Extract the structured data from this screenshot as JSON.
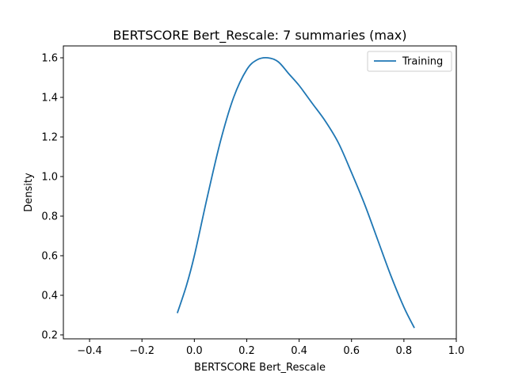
{
  "chart_data": {
    "type": "line",
    "title": "BERTSCORE Bert_Rescale: 7 summaries (max)",
    "xlabel": "BERTSCORE Bert_Rescale",
    "ylabel": "Density",
    "xlim": [
      -0.5,
      1.0
    ],
    "ylim": [
      0.18,
      1.66
    ],
    "grid": false,
    "legend_position": "top-right",
    "x_ticks": [
      -0.4,
      -0.2,
      0.0,
      0.2,
      0.4,
      0.6,
      0.8,
      1.0
    ],
    "x_tick_labels": [
      "−0.4",
      "−0.2",
      "0.0",
      "0.2",
      "0.4",
      "0.6",
      "0.8",
      "1.0"
    ],
    "y_ticks": [
      0.2,
      0.4,
      0.6,
      0.8,
      1.0,
      1.2,
      1.4,
      1.6
    ],
    "y_tick_labels": [
      "0.2",
      "0.4",
      "0.6",
      "0.8",
      "1.0",
      "1.2",
      "1.4",
      "1.6"
    ],
    "series": [
      {
        "name": "Training",
        "color": "#1f77b4",
        "x": [
          -0.065,
          -0.03,
          0.0,
          0.05,
          0.1,
          0.15,
          0.2,
          0.24,
          0.28,
          0.32,
          0.36,
          0.4,
          0.45,
          0.5,
          0.55,
          0.6,
          0.65,
          0.7,
          0.75,
          0.8,
          0.84
        ],
        "y": [
          0.31,
          0.45,
          0.6,
          0.9,
          1.18,
          1.4,
          1.54,
          1.59,
          1.6,
          1.58,
          1.52,
          1.46,
          1.37,
          1.28,
          1.17,
          1.02,
          0.86,
          0.68,
          0.5,
          0.34,
          0.235
        ]
      }
    ]
  }
}
